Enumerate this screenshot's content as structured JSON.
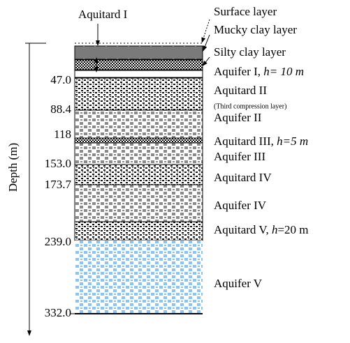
{
  "column": {
    "axis_label": "Depth (m)",
    "top_label": "Aquitard I",
    "depths": [
      "47.0",
      "88.4",
      "118",
      "153.0",
      "173.7",
      "239.0",
      "332.0"
    ],
    "layers": [
      {
        "label": "Surface layer"
      },
      {
        "label": "Mucky clay layer"
      },
      {
        "label": "Silty clay layer"
      },
      {
        "label": "Aquifer I, ",
        "italic": "h= 10 m"
      },
      {
        "label": "Aquitard II",
        "note": "(Third compression layer)"
      },
      {
        "label": "Aquifer II"
      },
      {
        "label": "Aquitard III, ",
        "italic": "h=5 m"
      },
      {
        "label": "Aquifer III"
      },
      {
        "label": "Aquitard IV"
      },
      {
        "label": "Aquifer IV"
      },
      {
        "label": "Aquitard V, ",
        "italic": "h",
        "tail": "=20 m"
      },
      {
        "label": "Aquifer V"
      }
    ]
  }
}
